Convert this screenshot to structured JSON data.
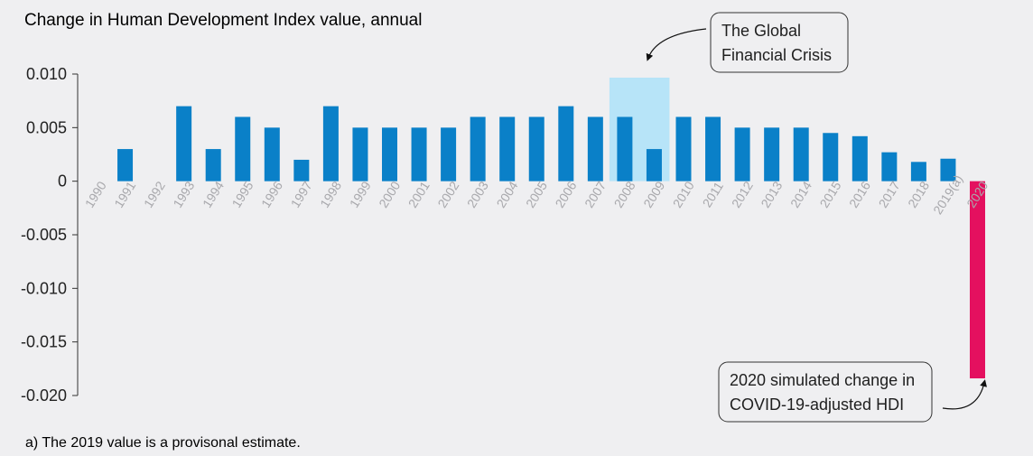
{
  "chart_data": {
    "type": "bar",
    "title": "Change in Human Development Index value, annual",
    "footnote": "a) The 2019 value is a provisonal estimate.",
    "categories": [
      "1990",
      "1991",
      "1992",
      "1993",
      "1994",
      "1995",
      "1996",
      "1997",
      "1998",
      "1999",
      "2000",
      "2001",
      "2002",
      "2003",
      "2004",
      "2005",
      "2006",
      "2007",
      "2008",
      "2009",
      "2010",
      "2011",
      "2012",
      "2013",
      "2014",
      "2015",
      "2016",
      "2017",
      "2018",
      "2019(a)",
      "2020"
    ],
    "values": [
      0,
      0.003,
      0,
      0.007,
      0.003,
      0.006,
      0.005,
      0.002,
      0.007,
      0.005,
      0.005,
      0.005,
      0.005,
      0.006,
      0.006,
      0.006,
      0.007,
      0.006,
      0.006,
      0.003,
      0.006,
      0.006,
      0.005,
      0.005,
      0.005,
      0.0045,
      0.0042,
      0.0027,
      0.0018,
      0.0021,
      -0.0184
    ],
    "yticks": [
      "0.010",
      "0.005",
      "0",
      "-0.005",
      "-0.010",
      "-0.015",
      "-0.020"
    ],
    "ylim": [
      -0.02,
      0.01
    ],
    "grid": false,
    "colors": {
      "default": "#0a80c8",
      "highlight": "#e4105f",
      "crisis_band": "#b7e4f8"
    },
    "highlight_category": "2020",
    "crisis_band_categories": [
      "2008",
      "2009"
    ],
    "annotations": [
      {
        "lines": [
          "The Global",
          "Financial Crisis"
        ],
        "target": "2008"
      },
      {
        "lines": [
          "2020 simulated change in",
          "COVID-19-adjusted HDI"
        ],
        "target": "2020"
      }
    ]
  }
}
